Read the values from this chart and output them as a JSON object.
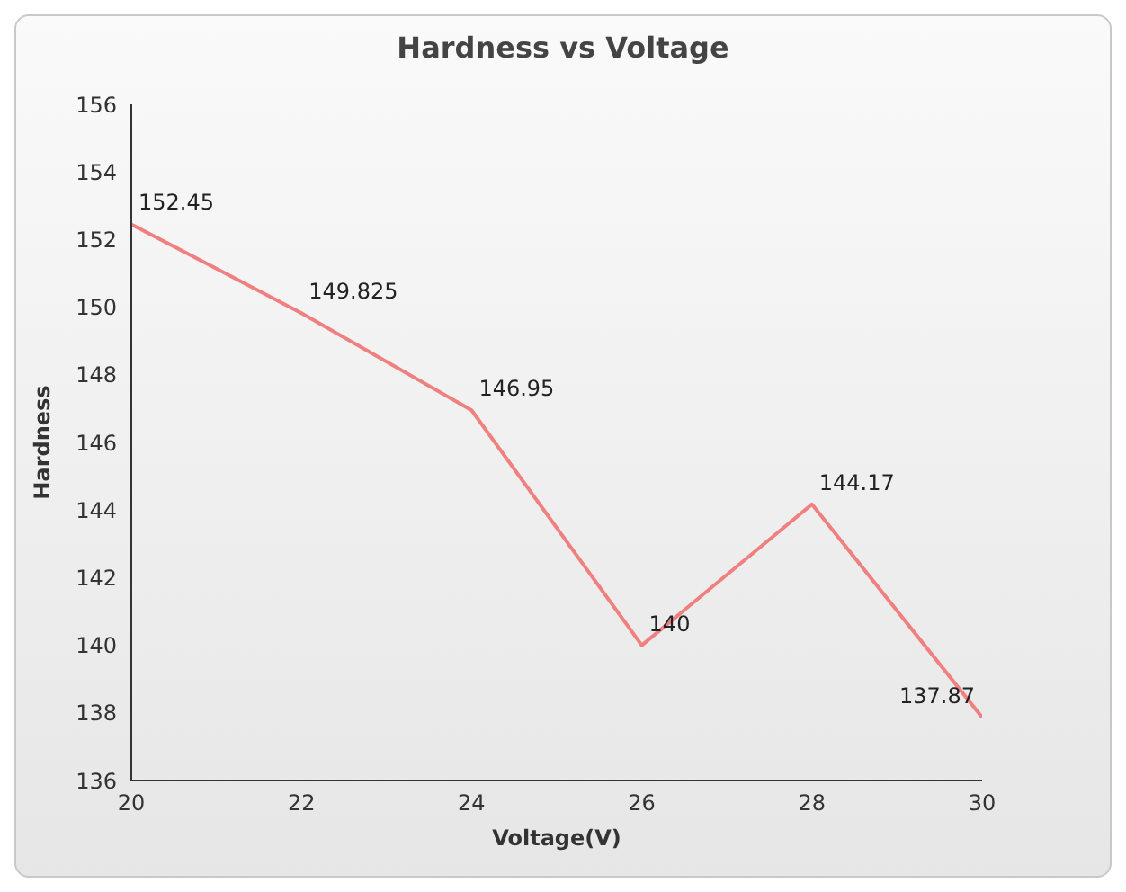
{
  "chart_data": {
    "type": "line",
    "title": "Hardness vs Voltage",
    "xlabel": "Voltage(V)",
    "ylabel": "Hardness",
    "x": [
      20,
      22,
      24,
      26,
      28,
      30
    ],
    "series": [
      {
        "color": "#f08080",
        "values": [
          152.45,
          149.825,
          146.95,
          140,
          144.17,
          137.87
        ]
      }
    ],
    "xlim": [
      20,
      30
    ],
    "xticks": [
      20,
      22,
      24,
      26,
      28,
      30
    ],
    "ylim": [
      136,
      156
    ],
    "yticks": [
      136,
      138,
      140,
      142,
      144,
      146,
      148,
      150,
      152,
      154,
      156
    ],
    "data_labels": true,
    "grid": false,
    "marker": "none",
    "line_style": "solid"
  }
}
